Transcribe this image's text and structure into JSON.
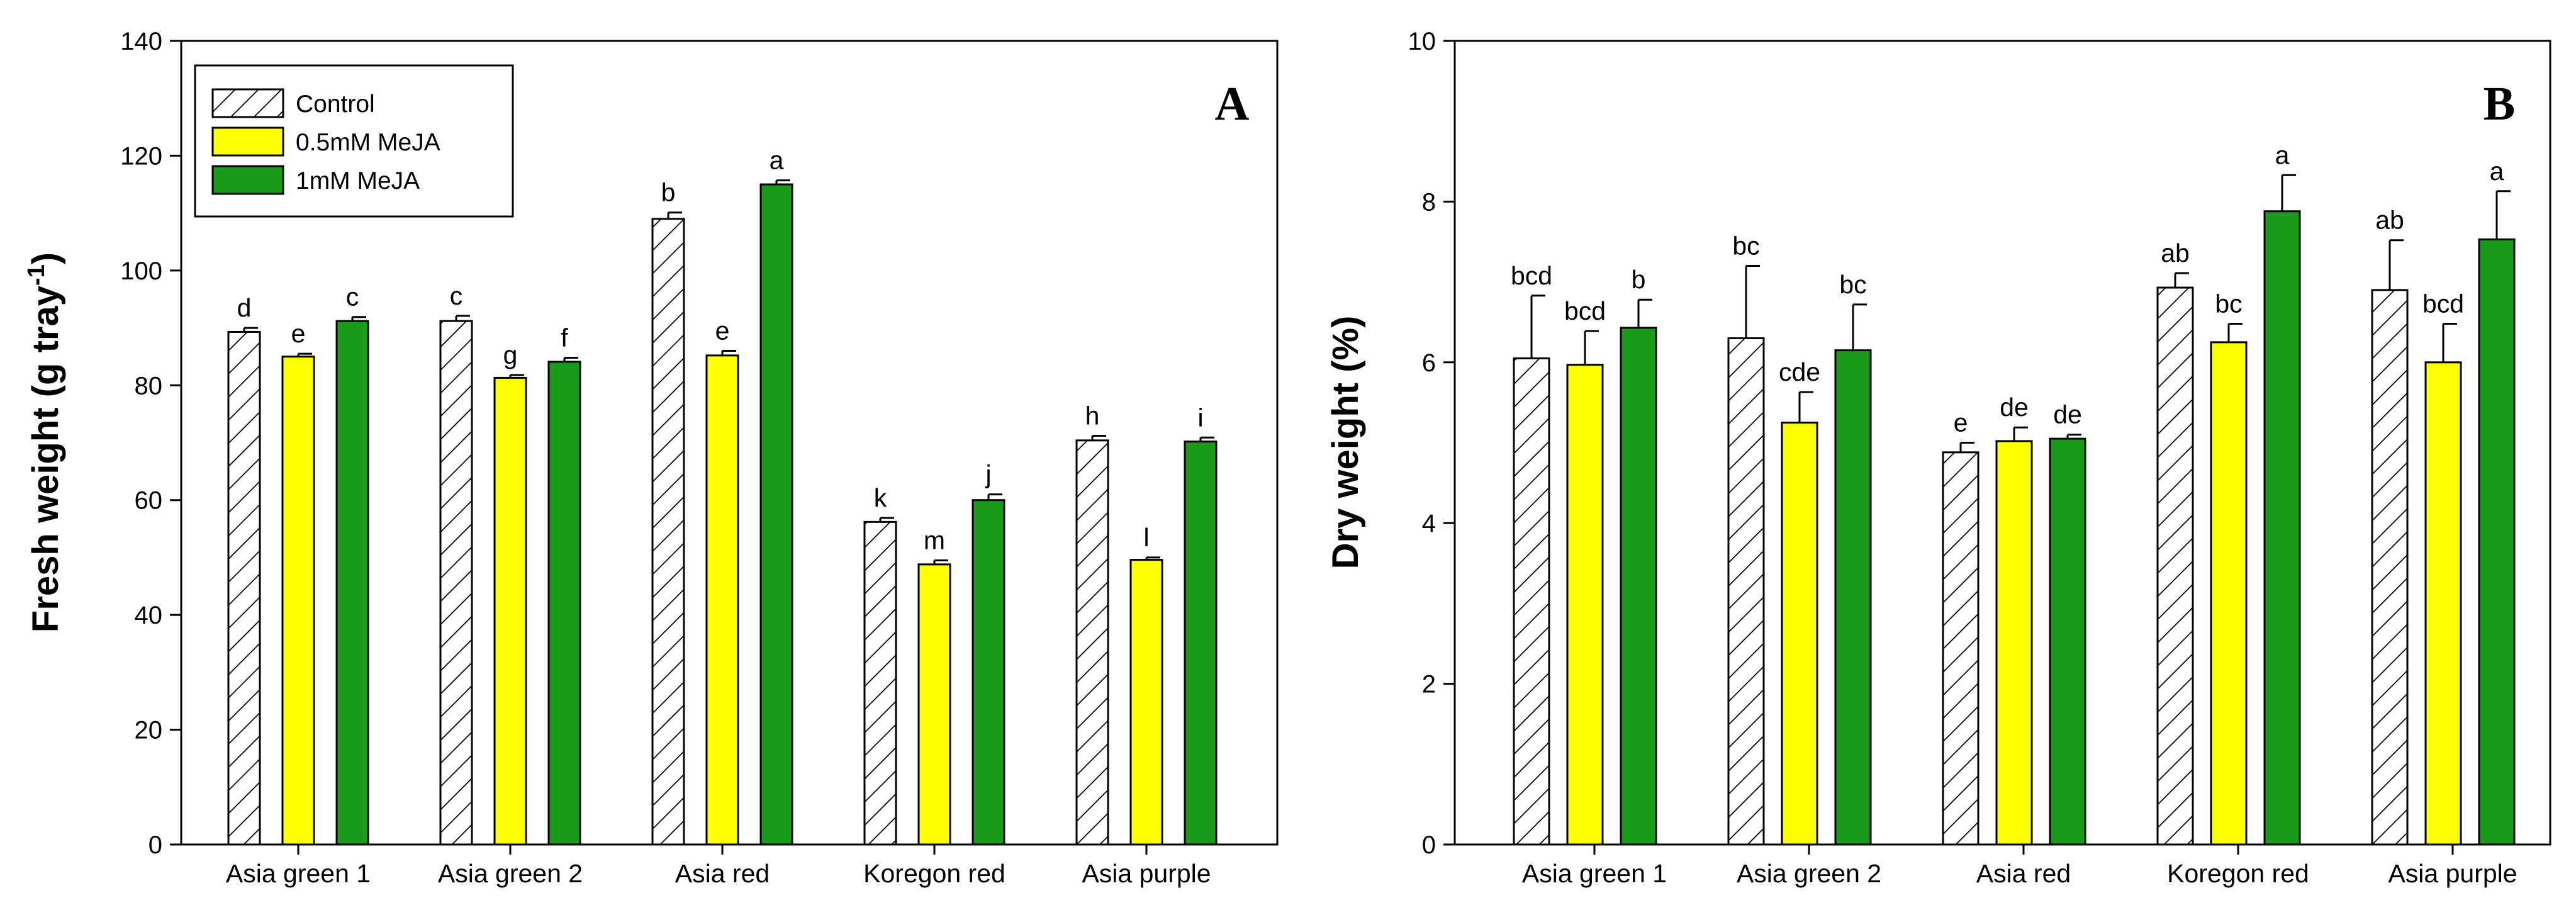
{
  "colors": {
    "control_fill": "#ffffff",
    "mejaa_05_fill": "#ffff00",
    "mejaa_1_fill": "#1a9a1a",
    "stroke": "#000000"
  },
  "legend": {
    "entries": [
      {
        "label": "Control",
        "pattern": "hatch"
      },
      {
        "label": "0.5mM MeJA",
        "color": "#ffff00"
      },
      {
        "label": "1mM MeJA",
        "color": "#1a9a1a"
      }
    ]
  },
  "chart_data": [
    {
      "type": "bar",
      "panel": "A",
      "ylabel": "Fresh weight (g tray",
      "ylabel_sup": "-1",
      "ylabel_tail": ")",
      "ylim": [
        0,
        140
      ],
      "yticks": [
        "0",
        "20",
        "40",
        "60",
        "80",
        "100",
        "120",
        "140"
      ],
      "categories": [
        "Asia green 1",
        "Asia green 2",
        "Asia red",
        "Koregon red",
        "Asia purple"
      ],
      "series": [
        {
          "name": "Control",
          "values": [
            89.3,
            91.2,
            109.0,
            56.2,
            70.4
          ],
          "errors": [
            0.7,
            0.9,
            1.1,
            0.7,
            0.8
          ],
          "labels": [
            "d",
            "c",
            "b",
            "k",
            "h"
          ]
        },
        {
          "name": "0.5mM MeJA",
          "values": [
            85.0,
            81.3,
            85.2,
            48.8,
            49.6
          ],
          "errors": [
            0.5,
            0.5,
            0.8,
            0.7,
            0.4
          ],
          "labels": [
            "e",
            "g",
            "e",
            "m",
            "l"
          ]
        },
        {
          "name": "1mM MeJA",
          "values": [
            91.2,
            84.1,
            115.0,
            60.0,
            70.2
          ],
          "errors": [
            0.7,
            0.7,
            0.7,
            1.0,
            0.7
          ],
          "labels": [
            "c",
            "f",
            "a",
            "j",
            "i"
          ]
        }
      ]
    },
    {
      "type": "bar",
      "panel": "B",
      "ylabel": "Dry weight (%)",
      "ylim": [
        0,
        10
      ],
      "yticks": [
        "0",
        "2",
        "4",
        "6",
        "8",
        "10"
      ],
      "categories": [
        "Asia green 1",
        "Asia green 2",
        "Asia red",
        "Koregon red",
        "Asia purple"
      ],
      "series": [
        {
          "name": "Control",
          "values": [
            6.05,
            6.3,
            4.88,
            6.93,
            6.9
          ],
          "errors": [
            0.78,
            0.9,
            0.12,
            0.18,
            0.62
          ],
          "labels": [
            "bcd",
            "bc",
            "e",
            "ab",
            "ab"
          ]
        },
        {
          "name": "0.5mM MeJA",
          "values": [
            5.97,
            5.25,
            5.02,
            6.25,
            6.0
          ],
          "errors": [
            0.42,
            0.38,
            0.17,
            0.23,
            0.48
          ],
          "labels": [
            "bcd",
            "cde",
            "de",
            "bc",
            "bcd"
          ]
        },
        {
          "name": "1mM MeJA",
          "values": [
            6.43,
            6.15,
            5.05,
            7.88,
            7.53
          ],
          "errors": [
            0.35,
            0.57,
            0.05,
            0.45,
            0.6
          ],
          "labels": [
            "b",
            "bc",
            "de",
            "a",
            "a"
          ]
        }
      ]
    }
  ]
}
